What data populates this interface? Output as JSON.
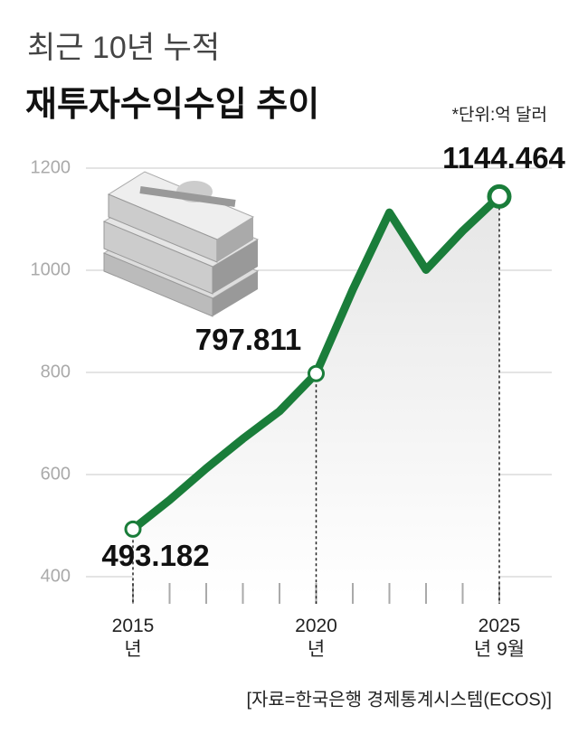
{
  "chart_data": {
    "type": "line",
    "title": "최근 10년 누적",
    "subtitle": "재투자수익수입 추이",
    "unit_note": "*단위:억 달러",
    "source": "[자료=한국은행 경제통계시스템(ECOS)]",
    "categories": [
      "2015년",
      null,
      null,
      null,
      null,
      "2020년",
      null,
      null,
      null,
      null,
      "2025년 9월"
    ],
    "series": [
      {
        "name": "재투자수익수입",
        "color": "#1a7d3a",
        "values": [
          493.182,
          550,
          612,
          670,
          724,
          797.811,
          962,
          1113,
          1001,
          1077,
          1144.464
        ],
        "value_labels": [
          "493.182",
          null,
          null,
          null,
          null,
          "797.811",
          null,
          null,
          null,
          null,
          "1144.464"
        ]
      }
    ],
    "ylim": [
      400,
      1200
    ],
    "yticks": [
      400,
      600,
      800,
      1000,
      1200
    ],
    "grid": true
  }
}
